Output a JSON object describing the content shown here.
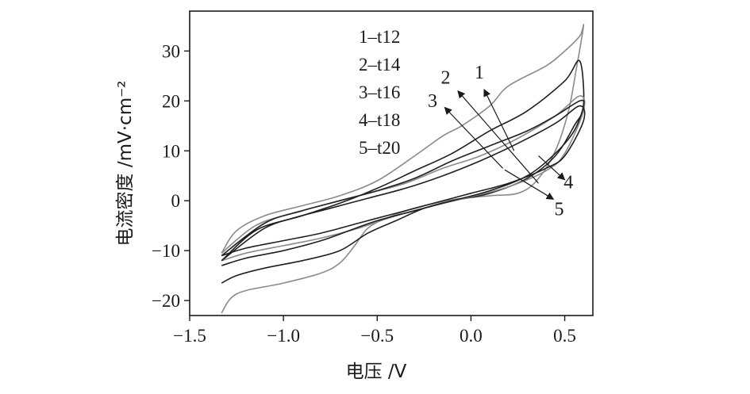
{
  "chart_data": {
    "type": "line",
    "title": "",
    "xlabel": "电压 /V",
    "ylabel": "电流密度 /mV·cm⁻²",
    "xlim": [
      -1.5,
      0.65
    ],
    "ylim": [
      -23,
      38
    ],
    "xticks": [
      {
        "value": -1.5,
        "label": "−1.5"
      },
      {
        "value": -1.0,
        "label": "−1.0"
      },
      {
        "value": -0.5,
        "label": "−0.5"
      },
      {
        "value": 0.0,
        "label": "0.0"
      },
      {
        "value": 0.5,
        "label": "0.5"
      }
    ],
    "yticks": [
      {
        "value": -20,
        "label": "−20"
      },
      {
        "value": -10,
        "label": "−10"
      },
      {
        "value": 0,
        "label": "0"
      },
      {
        "value": 10,
        "label": "10"
      },
      {
        "value": 20,
        "label": "20"
      },
      {
        "value": 30,
        "label": "30"
      }
    ],
    "grid": false,
    "legend_position": "top-center",
    "legend": [
      "1–t12",
      "2–t14",
      "3–t16",
      "4–t18",
      "5–t20"
    ],
    "series": [
      {
        "name": "1–t12",
        "color": "#8a8a8a",
        "points": [
          [
            -1.33,
            -22.5
          ],
          [
            -1.28,
            -19.5
          ],
          [
            -1.2,
            -18
          ],
          [
            -1.0,
            -16.5
          ],
          [
            -0.8,
            -14.5
          ],
          [
            -0.7,
            -12.5
          ],
          [
            -0.62,
            -9
          ],
          [
            -0.55,
            -5.5
          ],
          [
            -0.45,
            -3.5
          ],
          [
            -0.3,
            -1.5
          ],
          [
            -0.1,
            0.2
          ],
          [
            0.1,
            1
          ],
          [
            0.25,
            1.5
          ],
          [
            0.35,
            4
          ],
          [
            0.45,
            10
          ],
          [
            0.52,
            18
          ],
          [
            0.56,
            26
          ],
          [
            0.6,
            35
          ],
          [
            0.58,
            33
          ],
          [
            0.5,
            30
          ],
          [
            0.4,
            27
          ],
          [
            0.2,
            23
          ],
          [
            0.1,
            19
          ],
          [
            -0.05,
            15
          ],
          [
            -0.15,
            13
          ],
          [
            -0.3,
            9
          ],
          [
            -0.5,
            4
          ],
          [
            -0.7,
            1
          ],
          [
            -0.9,
            -1
          ],
          [
            -1.1,
            -3
          ],
          [
            -1.25,
            -6
          ],
          [
            -1.33,
            -10.5
          ]
        ]
      },
      {
        "name": "2–t14",
        "color": "#1f1f1f",
        "points": [
          [
            -1.33,
            -16.5
          ],
          [
            -1.25,
            -15
          ],
          [
            -1.1,
            -13.5
          ],
          [
            -0.9,
            -12
          ],
          [
            -0.7,
            -10
          ],
          [
            -0.55,
            -6.5
          ],
          [
            -0.4,
            -4
          ],
          [
            -0.25,
            -1.5
          ],
          [
            -0.1,
            0
          ],
          [
            0.1,
            1.5
          ],
          [
            0.3,
            4.5
          ],
          [
            0.45,
            9
          ],
          [
            0.55,
            15
          ],
          [
            0.6,
            19
          ],
          [
            0.58,
            28
          ],
          [
            0.5,
            24
          ],
          [
            0.3,
            18
          ],
          [
            0.1,
            14
          ],
          [
            -0.1,
            9.5
          ],
          [
            -0.3,
            6
          ],
          [
            -0.5,
            2.5
          ],
          [
            -0.7,
            -0.5
          ],
          [
            -0.9,
            -3
          ],
          [
            -1.1,
            -5.5
          ],
          [
            -1.33,
            -12
          ]
        ]
      },
      {
        "name": "3–t16",
        "color": "#8a8a8a",
        "points": [
          [
            -1.33,
            -12
          ],
          [
            -1.2,
            -10.5
          ],
          [
            -1.0,
            -9
          ],
          [
            -0.8,
            -7.5
          ],
          [
            -0.6,
            -5.5
          ],
          [
            -0.4,
            -3
          ],
          [
            -0.2,
            -1
          ],
          [
            0.0,
            0.8
          ],
          [
            0.2,
            2.8
          ],
          [
            0.4,
            6
          ],
          [
            0.5,
            9.5
          ],
          [
            0.6,
            18
          ],
          [
            0.58,
            21
          ],
          [
            0.45,
            17
          ],
          [
            0.25,
            12.5
          ],
          [
            0.05,
            9
          ],
          [
            -0.15,
            6.5
          ],
          [
            -0.35,
            3.5
          ],
          [
            -0.55,
            1.5
          ],
          [
            -0.75,
            -0.5
          ],
          [
            -0.95,
            -2.5
          ],
          [
            -1.15,
            -5
          ],
          [
            -1.33,
            -10.5
          ]
        ]
      },
      {
        "name": "4–t18",
        "color": "#1f1f1f",
        "points": [
          [
            -1.33,
            -11
          ],
          [
            -1.2,
            -9.5
          ],
          [
            -1.0,
            -8
          ],
          [
            -0.8,
            -6.5
          ],
          [
            -0.6,
            -4.5
          ],
          [
            -0.4,
            -2.5
          ],
          [
            -0.2,
            -0.5
          ],
          [
            0.0,
            1.5
          ],
          [
            0.2,
            3.5
          ],
          [
            0.4,
            6.5
          ],
          [
            0.5,
            9
          ],
          [
            0.6,
            16
          ],
          [
            0.58,
            19
          ],
          [
            0.45,
            15.5
          ],
          [
            0.25,
            11.5
          ],
          [
            0.05,
            8
          ],
          [
            -0.15,
            5
          ],
          [
            -0.35,
            2.5
          ],
          [
            -0.55,
            0.5
          ],
          [
            -0.75,
            -1.5
          ],
          [
            -0.95,
            -3.5
          ],
          [
            -1.15,
            -6
          ],
          [
            -1.33,
            -12
          ]
        ]
      },
      {
        "name": "5–t20",
        "color": "#1f1f1f",
        "points": [
          [
            -1.33,
            -13
          ],
          [
            -1.2,
            -11.5
          ],
          [
            -1.0,
            -10
          ],
          [
            -0.8,
            -8
          ],
          [
            -0.65,
            -6
          ],
          [
            -0.5,
            -4
          ],
          [
            -0.3,
            -2
          ],
          [
            -0.1,
            0
          ],
          [
            0.1,
            2
          ],
          [
            0.3,
            5
          ],
          [
            0.45,
            9.5
          ],
          [
            0.55,
            14
          ],
          [
            0.6,
            19
          ],
          [
            0.58,
            20
          ],
          [
            0.45,
            17
          ],
          [
            0.3,
            14
          ],
          [
            0.1,
            11
          ],
          [
            -0.1,
            8
          ],
          [
            -0.3,
            4.5
          ],
          [
            -0.5,
            2
          ],
          [
            -0.7,
            0
          ],
          [
            -0.9,
            -2
          ],
          [
            -1.1,
            -4.5
          ],
          [
            -1.33,
            -11
          ]
        ]
      }
    ],
    "callouts": [
      {
        "label": "1",
        "text_x": 0.045,
        "text_y": 24.5,
        "arrow_from": [
          0.23,
          10
        ],
        "arrow_to": [
          0.07,
          22.3
        ]
      },
      {
        "label": "2",
        "text_x": -0.135,
        "text_y": 23.5,
        "arrow_from": [
          0.36,
          3.5
        ],
        "arrow_to": [
          -0.07,
          22
        ]
      },
      {
        "label": "3",
        "text_x": -0.205,
        "text_y": 18.8,
        "arrow_from": [
          0.17,
          6.5
        ],
        "arrow_to": [
          -0.14,
          18.7
        ]
      },
      {
        "label": "4",
        "text_x": 0.52,
        "text_y": 2.5,
        "arrow_from": [
          0.36,
          9
        ],
        "arrow_to": [
          0.5,
          4.2
        ]
      },
      {
        "label": "5",
        "text_x": 0.47,
        "text_y": -2.9,
        "arrow_from": [
          0.18,
          6.2
        ],
        "arrow_to": [
          0.44,
          0.3
        ]
      }
    ]
  }
}
